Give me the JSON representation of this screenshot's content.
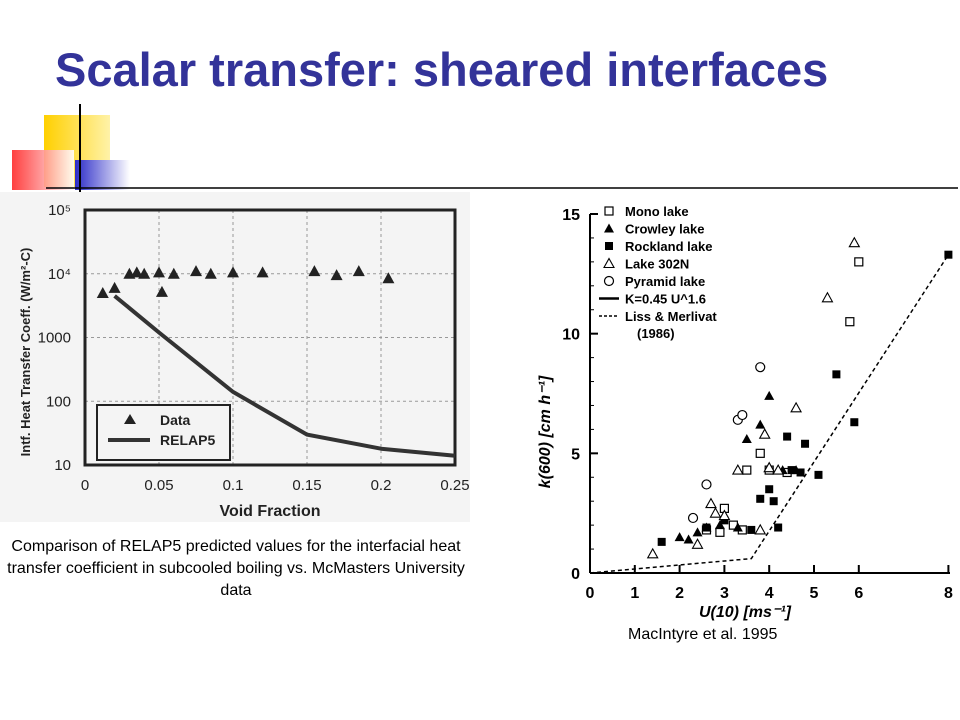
{
  "slide": {
    "title": "Scalar transfer: sheared interfaces",
    "caption": "Comparison of RELAP5 predicted values for the interfacial heat transfer coefficient in subcooled boiling vs. McMasters University data",
    "credit": "MacIntyre et al. 1995",
    "title_color": "#333399"
  },
  "chart_data": [
    {
      "type": "scatter",
      "title": "",
      "xlabel": "Void Fraction",
      "ylabel": "Intf. Heat Transfer Coeff. (W/m²-C)",
      "xlim": [
        0,
        0.25
      ],
      "ylim": [
        10,
        100000
      ],
      "yscale": "log",
      "x_ticks": [
        "0",
        "0.05",
        "0.1",
        "0.15",
        "0.2",
        "0.25"
      ],
      "y_ticks": [
        "10",
        "100",
        "1000",
        "10⁴",
        "10⁵"
      ],
      "grid": true,
      "legend_position": "bottom-left",
      "series": [
        {
          "name": "Data",
          "marker": "filled-triangle",
          "points": [
            [
              0.012,
              5000
            ],
            [
              0.02,
              6000
            ],
            [
              0.03,
              10000
            ],
            [
              0.035,
              10500
            ],
            [
              0.04,
              10000
            ],
            [
              0.05,
              10500
            ],
            [
              0.052,
              5200
            ],
            [
              0.06,
              10000
            ],
            [
              0.075,
              11000
            ],
            [
              0.085,
              10000
            ],
            [
              0.1,
              10500
            ],
            [
              0.12,
              10500
            ],
            [
              0.155,
              11000
            ],
            [
              0.17,
              9500
            ],
            [
              0.185,
              11000
            ],
            [
              0.205,
              8500
            ]
          ]
        },
        {
          "name": "RELAP5",
          "style": "line",
          "points": [
            [
              0.02,
              4500
            ],
            [
              0.05,
              1200
            ],
            [
              0.1,
              140
            ],
            [
              0.15,
              30
            ],
            [
              0.2,
              18
            ],
            [
              0.25,
              14
            ]
          ]
        }
      ]
    },
    {
      "type": "scatter",
      "title": "",
      "xlabel": "U(10) [ms⁻¹]",
      "ylabel": "k(600) [cm h⁻¹]",
      "xlim": [
        0,
        8
      ],
      "ylim": [
        0,
        15
      ],
      "x_ticks": [
        "0",
        "1",
        "2",
        "3",
        "4",
        "5",
        "6",
        "8"
      ],
      "y_ticks": [
        "0",
        "5",
        "10",
        "15"
      ],
      "legend_position": "top-left",
      "series": [
        {
          "name": "Mono lake",
          "marker": "open-square",
          "points": [
            [
              2.6,
              1.8
            ],
            [
              2.9,
              1.7
            ],
            [
              3.0,
              2.7
            ],
            [
              3.2,
              2.0
            ],
            [
              3.4,
              1.8
            ],
            [
              3.5,
              4.3
            ],
            [
              3.8,
              5.0
            ],
            [
              4.0,
              4.3
            ],
            [
              4.4,
              4.2
            ],
            [
              5.8,
              10.5
            ],
            [
              6.0,
              13.0
            ]
          ]
        },
        {
          "name": "Crowley lake",
          "marker": "filled-triangle",
          "points": [
            [
              2.0,
              1.5
            ],
            [
              2.2,
              1.4
            ],
            [
              2.4,
              1.7
            ],
            [
              2.6,
              1.9
            ],
            [
              2.9,
              2.0
            ],
            [
              3.3,
              1.9
            ],
            [
              3.5,
              5.6
            ],
            [
              3.8,
              6.2
            ],
            [
              4.0,
              7.4
            ],
            [
              4.3,
              4.3
            ],
            [
              4.6,
              4.3
            ]
          ]
        },
        {
          "name": "Rockland lake",
          "marker": "filled-square",
          "points": [
            [
              1.6,
              1.3
            ],
            [
              2.6,
              1.9
            ],
            [
              3.0,
              2.2
            ],
            [
              3.6,
              1.8
            ],
            [
              3.8,
              3.1
            ],
            [
              4.0,
              3.5
            ],
            [
              4.1,
              3.0
            ],
            [
              4.2,
              1.9
            ],
            [
              4.4,
              5.7
            ],
            [
              4.5,
              4.3
            ],
            [
              4.7,
              4.2
            ],
            [
              4.8,
              5.4
            ],
            [
              5.1,
              4.1
            ],
            [
              5.5,
              8.3
            ],
            [
              5.9,
              6.3
            ],
            [
              8.0,
              13.3
            ]
          ]
        },
        {
          "name": "Lake 302N",
          "marker": "open-triangle",
          "points": [
            [
              1.4,
              0.8
            ],
            [
              2.4,
              1.2
            ],
            [
              2.7,
              2.9
            ],
            [
              2.8,
              2.5
            ],
            [
              3.0,
              2.4
            ],
            [
              3.3,
              4.3
            ],
            [
              3.8,
              1.8
            ],
            [
              3.9,
              5.8
            ],
            [
              4.0,
              4.4
            ],
            [
              4.2,
              4.3
            ],
            [
              4.6,
              6.9
            ],
            [
              5.3,
              11.5
            ],
            [
              5.9,
              13.8
            ]
          ]
        },
        {
          "name": "Pyramid lake",
          "marker": "open-circle",
          "points": [
            [
              2.3,
              2.3
            ],
            [
              2.6,
              3.7
            ],
            [
              3.3,
              6.4
            ],
            [
              3.4,
              6.6
            ],
            [
              3.8,
              8.6
            ]
          ]
        },
        {
          "name": "K=0.45 U^1.6",
          "style": "solid-line",
          "points": []
        },
        {
          "name": "Liss & Merlivat (1986)",
          "style": "dashed-line",
          "points": [
            [
              0,
              0
            ],
            [
              3.6,
              0.6
            ],
            [
              8,
              13.3
            ]
          ]
        }
      ]
    }
  ]
}
